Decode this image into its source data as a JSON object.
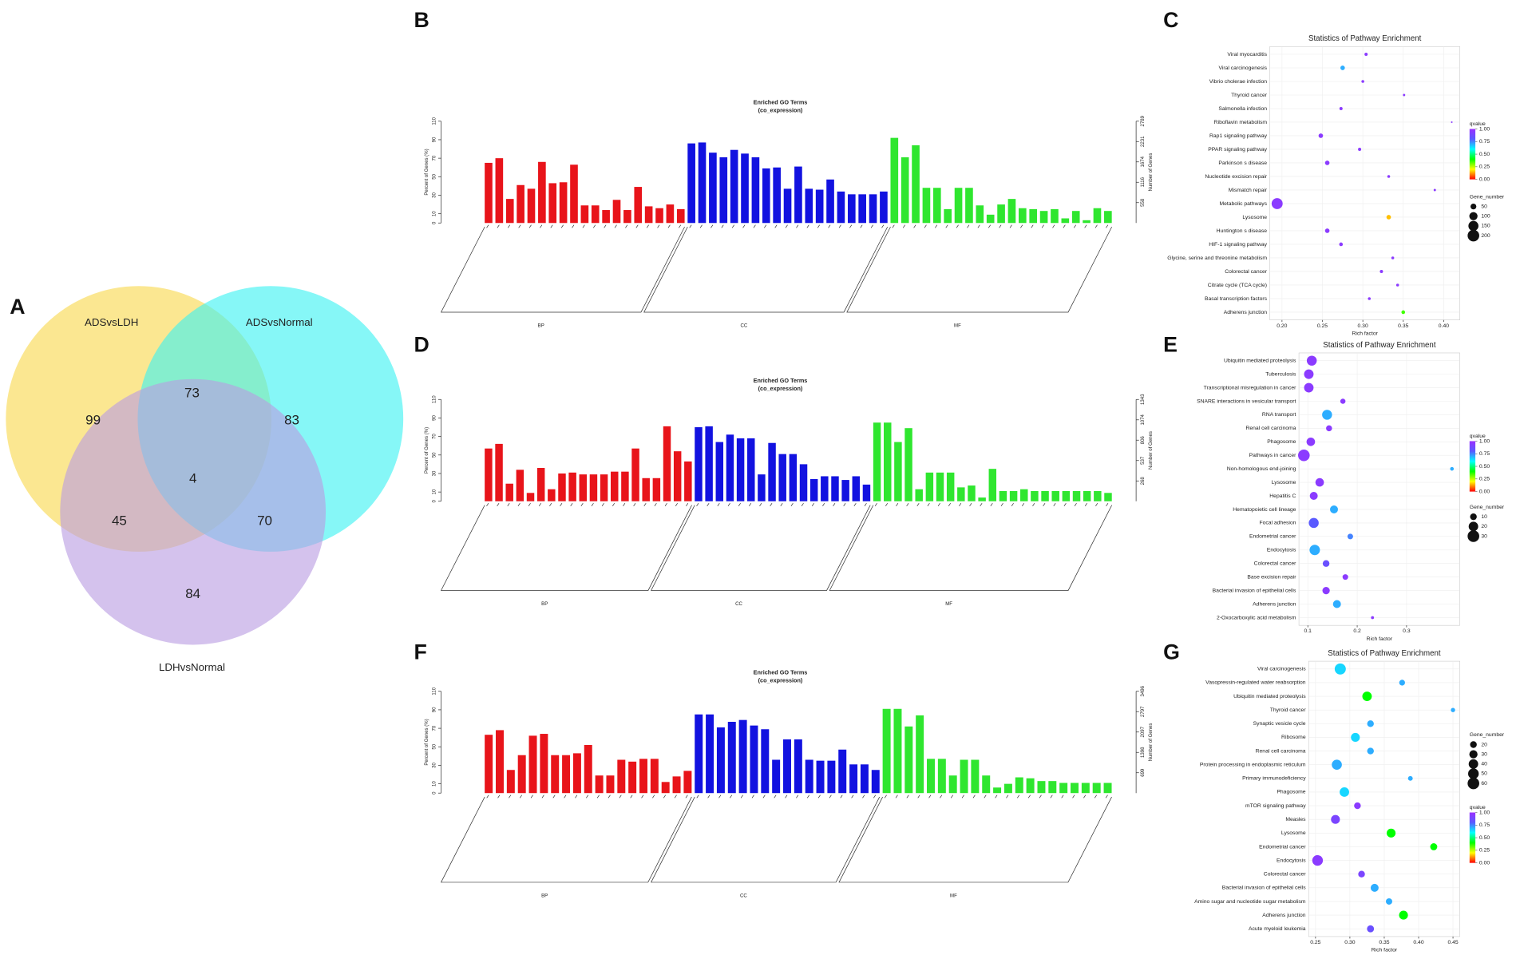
{
  "chart_data": [
    {
      "panel": "A",
      "type": "venn",
      "sets": [
        {
          "name": "ADSvsLDH",
          "color": "#f9d84e"
        },
        {
          "name": "ADSvsNormal",
          "color": "#3cf2f2"
        },
        {
          "name": "LDHvsNormal",
          "color": "#b99de2"
        }
      ],
      "values": [
        99,
        83,
        84,
        73,
        45,
        70,
        4
      ]
    },
    {
      "panel": "B",
      "type": "bar",
      "title": "Enriched GO Terms",
      "subtitle": "(co_expression)",
      "ylabel": "Percent of Genes (%)",
      "y2label": "Number of Genes",
      "ylim": [
        0,
        110
      ],
      "yticks": [
        0,
        10,
        30,
        50,
        70,
        90,
        110
      ],
      "y2lim": [
        0,
        2789
      ],
      "y2ticks": [
        558,
        1116,
        1674,
        2231,
        2789
      ],
      "series": [
        {
          "name": "BP",
          "color": "#e8141a",
          "values": [
            65,
            70,
            26,
            41,
            37,
            66,
            43,
            44,
            63,
            19,
            19,
            14,
            25,
            14,
            39,
            18,
            16,
            20,
            15
          ]
        },
        {
          "name": "CC",
          "color": "#1212e0",
          "values": [
            86,
            87,
            76,
            71,
            79,
            75,
            71,
            59,
            60,
            37,
            61,
            37,
            36,
            47,
            34,
            31,
            31,
            31,
            34
          ]
        },
        {
          "name": "MF",
          "color": "#2fe62f",
          "values": [
            92,
            71,
            84,
            38,
            38,
            15,
            38,
            38,
            19,
            9,
            20,
            26,
            16,
            15,
            13,
            15,
            5,
            13,
            3,
            16,
            13
          ]
        }
      ]
    },
    {
      "panel": "C",
      "type": "scatter",
      "title": "Statistics of Pathway Enrichment",
      "xlabel": "Rich factor",
      "categories": [
        "Viral myocarditis",
        "Viral carcinogenesis",
        "Vibrio cholerae infection",
        "Thyroid cancer",
        "Salmonella infection",
        "Riboflavin metabolism",
        "Rap1 signaling pathway",
        "PPAR signaling pathway",
        "Parkinson s disease",
        "Nucleotide excision repair",
        "Mismatch repair",
        "Metabolic pathways",
        "Lysosome",
        "Huntington s disease",
        "HIF-1 signaling pathway",
        "Glycine, serine and threonine metabolism",
        "Colorectal cancer",
        "Citrate cycle (TCA cycle)",
        "Basal transcription factors",
        "Adherens junction"
      ],
      "x": [
        0.304,
        0.275,
        0.3,
        0.351,
        0.273,
        0.41,
        0.248,
        0.296,
        0.256,
        0.332,
        0.389,
        0.194,
        0.332,
        0.256,
        0.273,
        0.337,
        0.323,
        0.343,
        0.308,
        0.35
      ],
      "sizes": [
        15,
        30,
        12,
        8,
        15,
        4,
        30,
        15,
        30,
        12,
        8,
        180,
        30,
        30,
        20,
        12,
        15,
        12,
        12,
        20
      ],
      "qvalues": [
        0.95,
        0.7,
        0.95,
        0.95,
        0.95,
        0.95,
        0.95,
        0.95,
        0.95,
        0.95,
        0.95,
        0.95,
        0.15,
        0.95,
        0.95,
        0.95,
        0.95,
        0.95,
        0.95,
        0.35
      ],
      "xlim": [
        0.185,
        0.42
      ],
      "xticks": [
        {
          "value": 0.2,
          "label": "0.20"
        },
        0.25,
        {
          "value": 0.3,
          "label": "0.30"
        },
        0.35,
        {
          "value": 0.4,
          "label": "0.40"
        }
      ],
      "color_title": "qvalue",
      "color_ticks": [
        {
          "value": 0,
          "label": "0.00"
        },
        0.25,
        {
          "value": 0.5,
          "label": "0.50"
        },
        0.75,
        {
          "value": 1,
          "label": "1.00"
        }
      ],
      "colorscale": [
        "#ff0000",
        "#ffff00",
        "#00ff00",
        "#00ffff",
        "#5a5aff",
        "#9b30ff"
      ],
      "size_title": "Gene_number",
      "size_ticks": [
        50,
        100,
        150,
        200
      ]
    },
    {
      "panel": "D",
      "type": "bar",
      "title": "Enriched GO Terms",
      "subtitle": "(co_expression)",
      "ylabel": "Percent of Genes (%)",
      "y2label": "Number of Genes",
      "ylim": [
        0,
        110
      ],
      "yticks": [
        0,
        10,
        30,
        50,
        70,
        90,
        110
      ],
      "y2lim": [
        0,
        1343
      ],
      "y2ticks": [
        268,
        537,
        806,
        1074,
        1343
      ],
      "series": [
        {
          "name": "BP",
          "color": "#e8141a",
          "values": [
            57,
            62,
            19,
            34,
            9,
            36,
            13,
            30,
            31,
            29,
            29,
            29,
            32,
            32,
            57,
            25,
            25,
            81,
            54,
            43
          ]
        },
        {
          "name": "CC",
          "color": "#1212e0",
          "values": [
            80,
            81,
            64,
            72,
            68,
            68,
            29,
            63,
            51,
            51,
            40,
            24,
            27,
            27,
            23,
            27,
            18
          ]
        },
        {
          "name": "MF",
          "color": "#2fe62f",
          "values": [
            85,
            85,
            64,
            79,
            13,
            31,
            31,
            31,
            15,
            17,
            4,
            35,
            11,
            11,
            13,
            11,
            11,
            11,
            11,
            11,
            11,
            11,
            9
          ]
        }
      ]
    },
    {
      "panel": "E",
      "type": "scatter",
      "title": "Statistics of Pathway Enrichment",
      "xlabel": "Rich factor",
      "categories": [
        "Ubiquitin mediated proteolysis",
        "Tuberculosis",
        "Transcriptional misregulation in cancer",
        "SNARE interactions in vesicular transport",
        "RNA transport",
        "Renal cell carcinoma",
        "Phagosome",
        "Pathways in cancer",
        "Non-homologous end-joining",
        "Lysosome",
        "Hepatitis C",
        "Hematopoietic cell lineage",
        "Focal adhesion",
        "Endometrial cancer",
        "Endocytosis",
        "Colorectal cancer",
        "Base excision repair",
        "Bacterial invasion of epithelial cells",
        "Adherens junction",
        "2-Oxocarboxylic acid metabolism"
      ],
      "x": [
        0.108,
        0.102,
        0.102,
        0.171,
        0.139,
        0.143,
        0.106,
        0.092,
        0.392,
        0.124,
        0.112,
        0.153,
        0.112,
        0.186,
        0.114,
        0.137,
        0.176,
        0.137,
        0.159,
        0.231
      ],
      "sizes": [
        22,
        20,
        20,
        6,
        22,
        8,
        16,
        30,
        3,
        16,
        14,
        14,
        22,
        7,
        24,
        10,
        7,
        12,
        14,
        2
      ],
      "qvalues": [
        0.95,
        0.95,
        0.95,
        0.95,
        0.7,
        0.95,
        0.95,
        0.95,
        0.7,
        0.95,
        0.95,
        0.7,
        0.8,
        0.75,
        0.7,
        0.85,
        0.95,
        0.95,
        0.7,
        0.95
      ],
      "xlim": [
        0.082,
        0.408
      ],
      "xticks": [
        0.1,
        0.2,
        0.3
      ],
      "color_title": "qvalue",
      "color_ticks": [
        {
          "value": 0,
          "label": "0.00"
        },
        0.25,
        {
          "value": 0.5,
          "label": "0.50"
        },
        0.75,
        {
          "value": 1,
          "label": "1.00"
        }
      ],
      "colorscale": [
        "#ff0000",
        "#ffff00",
        "#00ff00",
        "#00ffff",
        "#5a5aff",
        "#9b30ff"
      ],
      "size_title": "Gene_number",
      "size_ticks": [
        10,
        20,
        30
      ]
    },
    {
      "panel": "F",
      "type": "bar",
      "title": "Enriched GO Terms",
      "subtitle": "(co_expression)",
      "ylabel": "Percent of Genes (%)",
      "y2label": "Number of Genes",
      "ylim": [
        0,
        110
      ],
      "yticks": [
        0,
        10,
        30,
        50,
        70,
        90,
        110
      ],
      "y2lim": [
        0,
        3496
      ],
      "y2ticks": [
        699,
        1398,
        2097,
        2797,
        3496
      ],
      "series": [
        {
          "name": "BP",
          "color": "#e8141a",
          "values": [
            63,
            68,
            25,
            41,
            62,
            64,
            41,
            41,
            43,
            52,
            19,
            19,
            36,
            34,
            37,
            37,
            12,
            18,
            24
          ]
        },
        {
          "name": "CC",
          "color": "#1212e0",
          "values": [
            85,
            85,
            71,
            77,
            79,
            73,
            69,
            36,
            58,
            58,
            36,
            35,
            35,
            47,
            31,
            31,
            25
          ]
        },
        {
          "name": "MF",
          "color": "#2fe62f",
          "values": [
            91,
            91,
            72,
            84,
            37,
            37,
            19,
            36,
            36,
            19,
            6,
            10,
            17,
            16,
            13,
            13,
            11,
            11,
            11,
            11,
            11
          ]
        }
      ]
    },
    {
      "panel": "G",
      "type": "scatter",
      "title": "Statistics of Pathway Enrichment",
      "xlabel": "Rich factor",
      "categories": [
        "Viral carcinogenesis",
        "Vasopressin-regulated water reabsorption",
        "Ubiquitin mediated proteolysis",
        "Thyroid cancer",
        "Synaptic vesicle cycle",
        "Ribosome",
        "Renal cell carcinoma",
        "Protein processing in endoplasmic reticulum",
        "Primary immunodeficiency",
        "Phagosome",
        "mTOR signaling pathway",
        "Measles",
        "Lysosome",
        "Endometrial cancer",
        "Endocytosis",
        "Colorectal cancer",
        "Bacterial invasion of epithelial cells",
        "Amino sugar and nucleotide sugar metabolism",
        "Adherens junction",
        "Acute myeloid leukemia"
      ],
      "x": [
        0.286,
        0.376,
        0.325,
        0.45,
        0.33,
        0.308,
        0.33,
        0.281,
        0.388,
        0.292,
        0.311,
        0.279,
        0.36,
        0.422,
        0.253,
        0.317,
        0.336,
        0.357,
        0.378,
        0.33
      ],
      "sizes": [
        55,
        15,
        40,
        8,
        20,
        35,
        20,
        45,
        10,
        40,
        20,
        35,
        35,
        22,
        50,
        20,
        28,
        18,
        35,
        22
      ],
      "qvalues": [
        0.65,
        0.7,
        0.4,
        0.7,
        0.7,
        0.65,
        0.7,
        0.7,
        0.7,
        0.65,
        0.95,
        0.9,
        0.4,
        0.4,
        0.95,
        0.9,
        0.7,
        0.7,
        0.4,
        0.85
      ],
      "xlim": [
        0.24,
        0.46
      ],
      "xticks": [
        0.25,
        {
          "value": 0.3,
          "label": "0.30"
        },
        0.35,
        {
          "value": 0.4,
          "label": "0.40"
        },
        0.45
      ],
      "color_title": "qvalue",
      "color_ticks": [
        {
          "value": 0,
          "label": "0.00"
        },
        0.25,
        {
          "value": 0.5,
          "label": "0.50"
        },
        0.75,
        {
          "value": 1,
          "label": "1.00"
        }
      ],
      "colorscale": [
        "#ff0000",
        "#ffff00",
        "#00ff00",
        "#00ffff",
        "#5a5aff",
        "#9b30ff"
      ],
      "size_title": "Gene_number",
      "size_ticks": [
        20,
        30,
        40,
        50,
        60
      ]
    }
  ]
}
